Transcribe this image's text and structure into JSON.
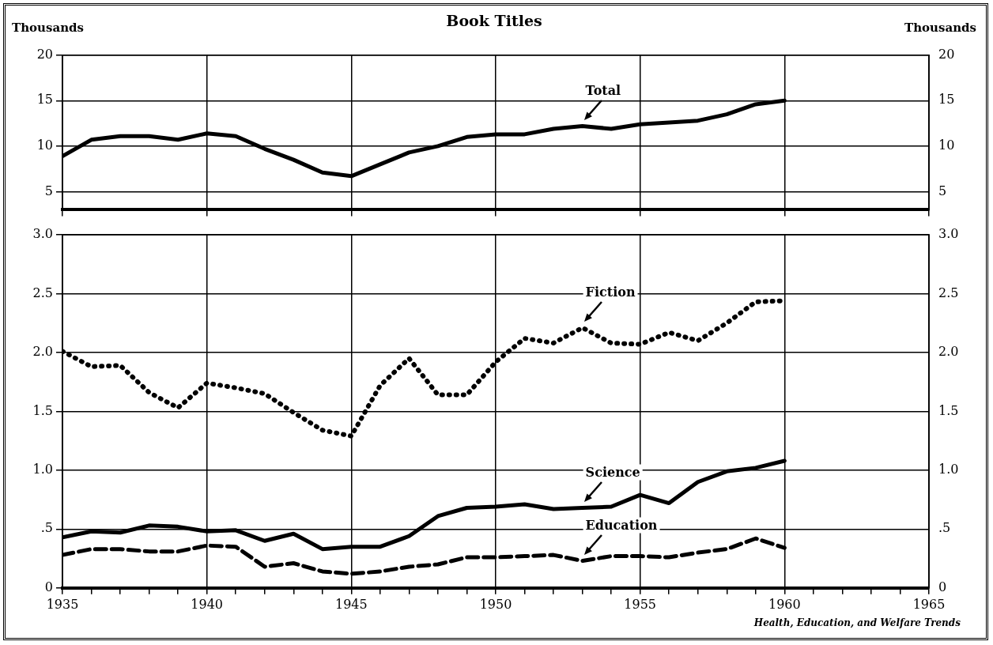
{
  "chart_data": [
    {
      "type": "line",
      "title": "Book Titles",
      "ylabel": "Thousands",
      "y2label": "Thousands",
      "x": [
        1935,
        1936,
        1937,
        1938,
        1939,
        1940,
        1941,
        1942,
        1943,
        1944,
        1945,
        1946,
        1947,
        1948,
        1949,
        1950,
        1951,
        1952,
        1953,
        1954,
        1955,
        1956,
        1957,
        1958,
        1959,
        1960
      ],
      "series": [
        {
          "name": "Total",
          "color": "#000000",
          "line_style": "solid",
          "values": [
            8.9,
            10.7,
            11.1,
            11.1,
            10.7,
            11.4,
            11.1,
            9.7,
            8.5,
            7.1,
            6.7,
            8.0,
            9.3,
            10.0,
            11.0,
            11.3,
            11.3,
            11.9,
            12.2,
            11.9,
            12.4,
            12.6,
            12.8,
            13.5,
            14.6,
            15.0
          ]
        }
      ],
      "xlim": [
        1935,
        1965
      ],
      "xticks": [
        1935,
        1940,
        1945,
        1950,
        1955,
        1960,
        1965
      ],
      "ylim": [
        3,
        20
      ],
      "yticks": [
        5,
        10,
        15,
        20
      ],
      "y2lim": [
        3,
        20
      ],
      "y2ticks": [
        5,
        10,
        15,
        20
      ],
      "grid": true,
      "tick_labels": "y"
    },
    {
      "type": "line",
      "x": [
        1935,
        1936,
        1937,
        1938,
        1939,
        1940,
        1941,
        1942,
        1943,
        1944,
        1945,
        1946,
        1947,
        1948,
        1949,
        1950,
        1951,
        1952,
        1953,
        1954,
        1955,
        1956,
        1957,
        1958,
        1959,
        1960
      ],
      "series": [
        {
          "name": "Fiction",
          "color": "#000000",
          "line_style": "dotted",
          "values": [
            2.01,
            1.88,
            1.89,
            1.66,
            1.53,
            1.74,
            1.7,
            1.65,
            1.49,
            1.34,
            1.29,
            1.72,
            1.95,
            1.64,
            1.64,
            1.92,
            2.12,
            2.08,
            2.21,
            2.08,
            2.07,
            2.17,
            2.1,
            2.25,
            2.43,
            2.44
          ]
        },
        {
          "name": "Science",
          "color": "#000000",
          "line_style": "solid",
          "values": [
            0.43,
            0.48,
            0.47,
            0.53,
            0.52,
            0.48,
            0.49,
            0.4,
            0.46,
            0.33,
            0.35,
            0.35,
            0.44,
            0.61,
            0.68,
            0.69,
            0.71,
            0.67,
            0.68,
            0.69,
            0.79,
            0.72,
            0.9,
            0.99,
            1.02,
            1.08
          ]
        },
        {
          "name": "Education",
          "color": "#000000",
          "line_style": "dashed",
          "values": [
            0.28,
            0.33,
            0.33,
            0.31,
            0.31,
            0.36,
            0.35,
            0.18,
            0.21,
            0.14,
            0.12,
            0.14,
            0.18,
            0.2,
            0.26,
            0.26,
            0.27,
            0.28,
            0.23,
            0.27,
            0.27,
            0.26,
            0.3,
            0.33,
            0.42,
            0.34
          ]
        }
      ],
      "xlim": [
        1935,
        1965
      ],
      "xticks": [
        1935,
        {
          "value": 1936,
          "label": null
        },
        {
          "value": 1937,
          "label": null
        },
        {
          "value": 1938,
          "label": null
        },
        {
          "value": 1939,
          "label": null
        },
        1940,
        {
          "value": 1941,
          "label": null
        },
        {
          "value": 1942,
          "label": null
        },
        {
          "value": 1943,
          "label": null
        },
        {
          "value": 1944,
          "label": null
        },
        1945,
        {
          "value": 1946,
          "label": null
        },
        {
          "value": 1947,
          "label": null
        },
        {
          "value": 1948,
          "label": null
        },
        {
          "value": 1949,
          "label": null
        },
        1950,
        {
          "value": 1951,
          "label": null
        },
        {
          "value": 1952,
          "label": null
        },
        {
          "value": 1953,
          "label": null
        },
        {
          "value": 1954,
          "label": null
        },
        1955,
        {
          "value": 1956,
          "label": null
        },
        {
          "value": 1957,
          "label": null
        },
        {
          "value": 1958,
          "label": null
        },
        {
          "value": 1959,
          "label": null
        },
        1960,
        {
          "value": 1961,
          "label": null
        },
        {
          "value": 1962,
          "label": null
        },
        {
          "value": 1963,
          "label": null
        },
        {
          "value": 1964,
          "label": null
        },
        1965
      ],
      "ylim": [
        0,
        3
      ],
      "yticks": [
        0,
        {
          "value": 0.5,
          "label": ".5"
        },
        {
          "value": 1,
          "label": "1.0"
        },
        {
          "value": 1.5,
          "label": "1.5"
        },
        {
          "value": 2,
          "label": "2.0"
        },
        {
          "value": 2.5,
          "label": "2.5"
        },
        {
          "value": 3,
          "label": "3.0"
        }
      ],
      "y2lim": [
        0,
        3
      ],
      "y2ticks": [
        0,
        {
          "value": 0.5,
          "label": ".5"
        },
        {
          "value": 1,
          "label": "1.0"
        },
        {
          "value": 1.5,
          "label": "1.5"
        },
        {
          "value": 2,
          "label": "2.0"
        },
        {
          "value": 2.5,
          "label": "2.5"
        },
        {
          "value": 3,
          "label": "3.0"
        }
      ],
      "grid": true,
      "annotations": [
        "Health, Education, and Welfare Trends"
      ]
    }
  ]
}
